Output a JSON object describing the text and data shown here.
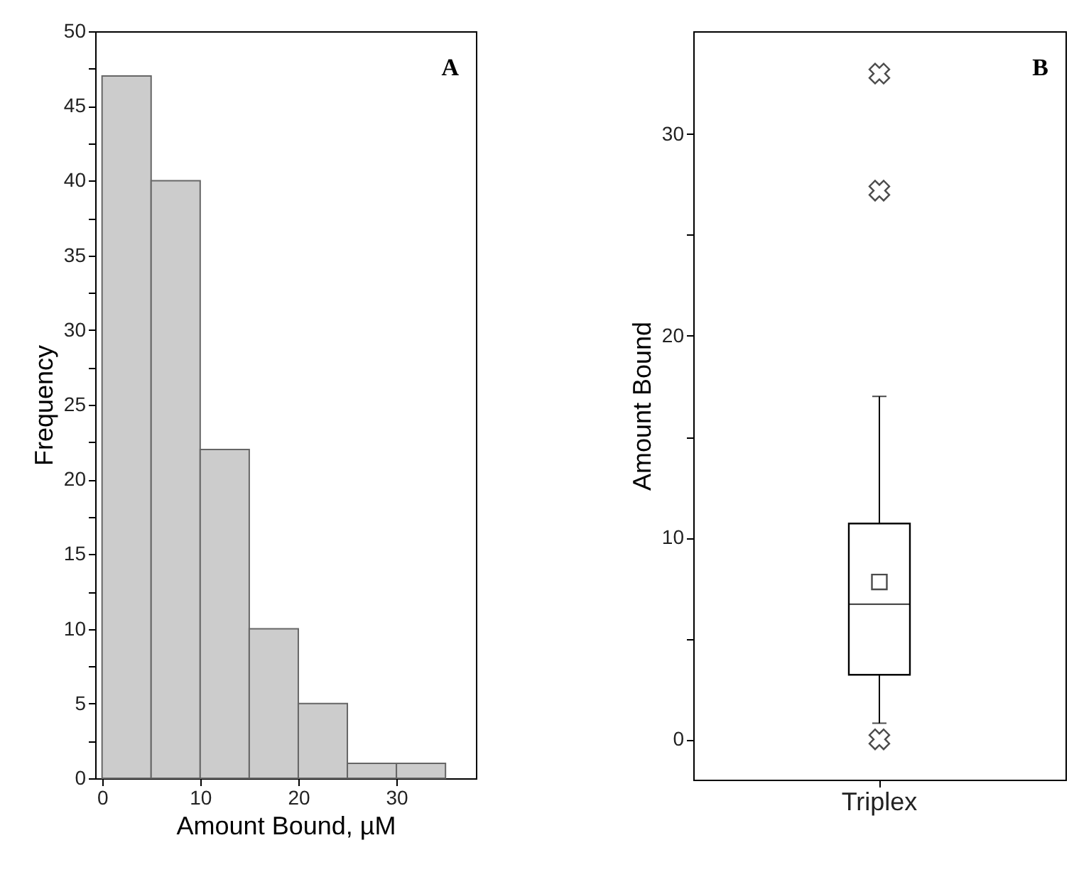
{
  "chart_data": [
    {
      "type": "histogram",
      "xlabel": "Amount Bound, µM",
      "ylabel": "Frequency",
      "annotations": [
        "A"
      ],
      "color": "#cccccc",
      "bins": [
        0,
        5,
        10,
        15,
        20,
        25,
        30,
        35
      ],
      "values": [
        47,
        40,
        22,
        10,
        5,
        1,
        1
      ],
      "xlim": [
        -0.7,
        38.1
      ],
      "xticks": [
        0,
        10,
        20,
        30
      ],
      "ylim": [
        0,
        50
      ],
      "yticks": [
        0,
        {
          "value": 2.5,
          "label": null
        },
        5,
        {
          "value": 7.5,
          "label": null
        },
        10,
        {
          "value": 12.5,
          "label": null
        },
        15,
        {
          "value": 17.5,
          "label": null
        },
        20,
        {
          "value": 22.5,
          "label": null
        },
        25,
        {
          "value": 27.5,
          "label": null
        },
        30,
        {
          "value": 32.5,
          "label": null
        },
        35,
        {
          "value": 37.5,
          "label": null
        },
        40,
        {
          "value": 42.5,
          "label": null
        },
        45,
        {
          "value": 47.5,
          "label": null
        },
        50
      ]
    },
    {
      "type": "box",
      "ylabel": "Amount Bound",
      "annotations": [
        "B"
      ],
      "categories": [
        "Triplex"
      ],
      "boxes": [
        {
          "low": 0.8,
          "q1": 3.2,
          "median": 6.7,
          "q3": 10.7,
          "high": 17,
          "mean": 7.8,
          "outliers": [
            33,
            27.2,
            0
          ]
        }
      ],
      "ylim": [
        -2,
        35.1
      ],
      "yticks": [
        0,
        {
          "value": 5,
          "label": null
        },
        10,
        {
          "value": 15,
          "label": null
        },
        20,
        {
          "value": 25,
          "label": null
        },
        30
      ]
    }
  ]
}
